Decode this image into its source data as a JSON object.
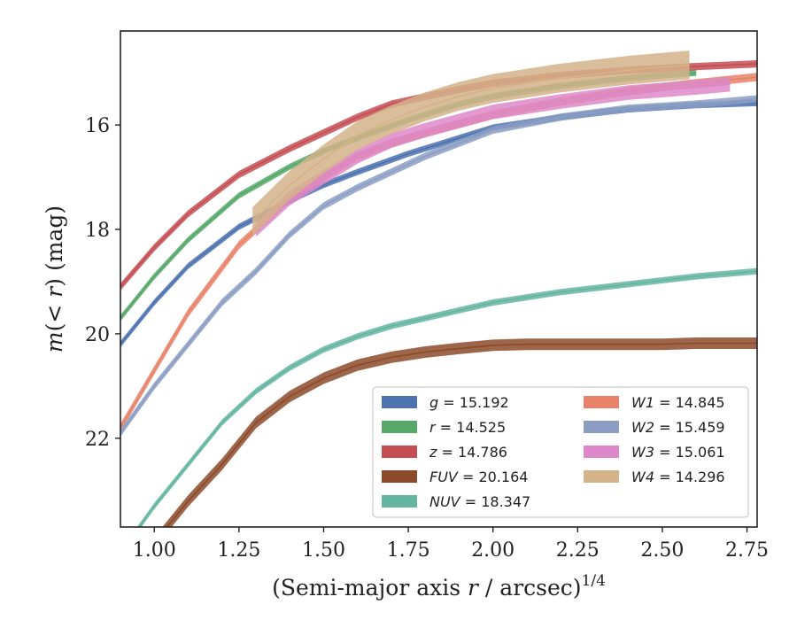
{
  "chart_data": {
    "type": "line",
    "xlabel": "(Semi-major axis r / arcsec)^1/4",
    "xlabel_main": "(Semi-major axis ",
    "xlabel_r": "r",
    "xlabel_tail": " / arcsec)",
    "xlabel_power": "1/4",
    "ylabel": "m(<r) (mag)",
    "ylabel_m": "m",
    "ylabel_mid": "(< ",
    "ylabel_r": "r",
    "ylabel_tail": ") (mag)",
    "xlim": [
      0.9,
      2.78
    ],
    "ylim": [
      23.7,
      14.2
    ],
    "y_inverted": true,
    "xticks": [
      1.0,
      1.25,
      1.5,
      1.75,
      2.0,
      2.25,
      2.5,
      2.75
    ],
    "xtick_labels": [
      "1.00",
      "1.25",
      "1.50",
      "1.75",
      "2.00",
      "2.25",
      "2.50",
      "2.75"
    ],
    "yticks": [
      16,
      18,
      20,
      22
    ],
    "ytick_labels": [
      "16",
      "18",
      "20",
      "22"
    ],
    "legend_placement": "lower-right",
    "grid": false,
    "series": [
      {
        "name": "g = 15.192",
        "label_var": "g",
        "label_val": " = 15.192",
        "color": "#4c72b0",
        "band": 0.12,
        "x": [
          0.9,
          1.0,
          1.1,
          1.25,
          1.4,
          1.5,
          1.6,
          1.75,
          1.9,
          2.0,
          2.2,
          2.4,
          2.6,
          2.78
        ],
        "y": [
          20.2,
          19.4,
          18.7,
          17.95,
          17.45,
          17.15,
          16.9,
          16.55,
          16.25,
          16.05,
          15.85,
          15.7,
          15.62,
          15.58
        ]
      },
      {
        "name": "r = 14.525",
        "label_var": "r",
        "label_val": " = 14.525",
        "color": "#55a868",
        "band": 0.12,
        "x": [
          0.9,
          1.0,
          1.1,
          1.25,
          1.4,
          1.5,
          1.6,
          1.75,
          1.9,
          2.0,
          2.2,
          2.4,
          2.6
        ],
        "y": [
          19.7,
          18.9,
          18.2,
          17.35,
          16.8,
          16.5,
          16.25,
          15.9,
          15.6,
          15.45,
          15.25,
          15.1,
          15.0
        ]
      },
      {
        "name": "z = 14.786",
        "label_var": "z",
        "label_val": " = 14.786",
        "color": "#c44e52",
        "band": 0.14,
        "x": [
          0.9,
          1.0,
          1.1,
          1.25,
          1.4,
          1.5,
          1.6,
          1.7,
          1.9,
          2.0,
          2.2,
          2.4,
          2.6,
          2.78
        ],
        "y": [
          19.1,
          18.35,
          17.7,
          16.95,
          16.45,
          16.15,
          15.85,
          15.6,
          15.32,
          15.2,
          15.05,
          14.95,
          14.88,
          14.83
        ]
      },
      {
        "name": "FUV = 20.164",
        "label_var": "FUV",
        "label_val": " = 20.164",
        "color": "#8c4a2a",
        "band": 0.22,
        "x": [
          1.0,
          1.05,
          1.1,
          1.2,
          1.3,
          1.4,
          1.5,
          1.6,
          1.7,
          1.8,
          1.9,
          2.0,
          2.1,
          2.3,
          2.5,
          2.6,
          2.78
        ],
        "y": [
          24.0,
          23.6,
          23.2,
          22.5,
          21.7,
          21.2,
          20.85,
          20.6,
          20.45,
          20.35,
          20.28,
          20.22,
          20.2,
          20.2,
          20.2,
          20.18,
          20.18
        ]
      },
      {
        "name": "NUV = 18.347",
        "label_var": "NUV",
        "label_val": " = 18.347",
        "color": "#64b5a0",
        "band": 0.12,
        "x": [
          0.9,
          1.0,
          1.1,
          1.2,
          1.3,
          1.4,
          1.5,
          1.6,
          1.7,
          1.8,
          2.0,
          2.2,
          2.4,
          2.6,
          2.78
        ],
        "y": [
          24.2,
          23.3,
          22.5,
          21.7,
          21.1,
          20.65,
          20.3,
          20.05,
          19.85,
          19.7,
          19.4,
          19.2,
          19.05,
          18.9,
          18.8
        ]
      },
      {
        "name": "W1 = 14.845",
        "label_var": "W1",
        "label_val": " = 14.845",
        "color": "#e8836a",
        "band": 0.16,
        "x": [
          0.9,
          1.0,
          1.1,
          1.25,
          1.4,
          1.5,
          1.6,
          1.7,
          1.8,
          2.0,
          2.2,
          2.4,
          2.6,
          2.78
        ],
        "y": [
          21.8,
          20.7,
          19.6,
          18.3,
          17.4,
          17.0,
          16.6,
          16.35,
          16.15,
          15.8,
          15.55,
          15.35,
          15.2,
          15.08
        ]
      },
      {
        "name": "W2 = 15.459",
        "label_var": "W2",
        "label_val": " = 15.459",
        "color": "#8b9dc3",
        "band": 0.14,
        "x": [
          0.9,
          1.0,
          1.1,
          1.2,
          1.3,
          1.4,
          1.5,
          1.6,
          1.7,
          1.8,
          2.0,
          2.2,
          2.4,
          2.6,
          2.78
        ],
        "y": [
          21.9,
          21.0,
          20.2,
          19.4,
          18.8,
          18.1,
          17.55,
          17.2,
          16.9,
          16.6,
          16.1,
          15.85,
          15.68,
          15.6,
          15.5
        ]
      },
      {
        "name": "W3 = 15.061",
        "label_var": "W3",
        "label_val": " = 15.061",
        "color": "#dd88c8",
        "band": 0.28,
        "x": [
          1.3,
          1.4,
          1.5,
          1.6,
          1.7,
          1.8,
          2.0,
          2.2,
          2.4,
          2.6,
          2.7
        ],
        "y": [
          18.0,
          17.4,
          17.0,
          16.6,
          16.3,
          16.1,
          15.75,
          15.55,
          15.38,
          15.28,
          15.22
        ]
      },
      {
        "name": "W4 = 14.296",
        "label_var": "W4",
        "label_val": " = 14.296",
        "color": "#d4b389",
        "band": 0.55,
        "x": [
          1.29,
          1.4,
          1.5,
          1.6,
          1.7,
          1.8,
          1.9,
          2.0,
          2.2,
          2.4,
          2.58
        ],
        "y": [
          17.85,
          17.15,
          16.65,
          16.2,
          15.9,
          15.65,
          15.45,
          15.3,
          15.1,
          14.95,
          14.85
        ]
      }
    ]
  }
}
